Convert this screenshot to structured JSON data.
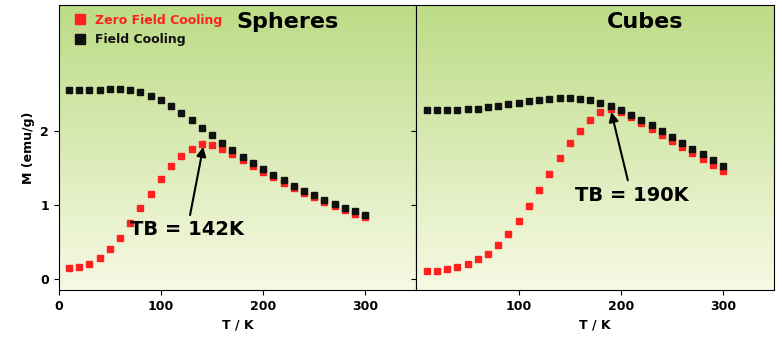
{
  "chart_data": [
    {
      "type": "scatter",
      "title": "Spheres",
      "x_label": "T / K",
      "y_label": "M (emu/g)",
      "x": [
        10,
        20,
        30,
        40,
        50,
        60,
        70,
        80,
        90,
        100,
        110,
        120,
        130,
        140,
        150,
        160,
        170,
        180,
        190,
        200,
        210,
        220,
        230,
        240,
        250,
        260,
        270,
        280,
        290,
        300
      ],
      "series": [
        {
          "name": "Zero Field Cooling",
          "color": "#ff2020",
          "marker": "square",
          "values": [
            0.15,
            0.16,
            0.2,
            0.28,
            0.4,
            0.55,
            0.75,
            0.95,
            1.15,
            1.35,
            1.52,
            1.66,
            1.76,
            1.82,
            1.81,
            1.76,
            1.68,
            1.6,
            1.52,
            1.44,
            1.37,
            1.3,
            1.23,
            1.16,
            1.1,
            1.04,
            0.98,
            0.93,
            0.88,
            0.83
          ]
        },
        {
          "name": "Field Cooling",
          "color": "#111111",
          "marker": "square",
          "values": [
            2.55,
            2.55,
            2.55,
            2.55,
            2.56,
            2.56,
            2.55,
            2.52,
            2.47,
            2.41,
            2.33,
            2.24,
            2.14,
            2.04,
            1.94,
            1.84,
            1.74,
            1.65,
            1.56,
            1.48,
            1.4,
            1.33,
            1.26,
            1.19,
            1.13,
            1.07,
            1.01,
            0.96,
            0.91,
            0.86
          ]
        }
      ],
      "xlim": [
        0,
        350
      ],
      "xticks": [
        0,
        100,
        200,
        300
      ],
      "ylim": [
        -0.15,
        3.7
      ],
      "yticks": [
        0,
        1,
        2
      ],
      "legend": "upper left",
      "annotations": [
        {
          "text": "TB = 142K",
          "x": 142,
          "y": 1.82
        }
      ]
    },
    {
      "type": "scatter",
      "title": "Cubes",
      "x_label": "T / K",
      "x": [
        10,
        20,
        30,
        40,
        50,
        60,
        70,
        80,
        90,
        100,
        110,
        120,
        130,
        140,
        150,
        160,
        170,
        180,
        190,
        200,
        210,
        220,
        230,
        240,
        250,
        260,
        270,
        280,
        290,
        300
      ],
      "series": [
        {
          "name": "Zero Field Cooling",
          "color": "#ff2020",
          "marker": "square",
          "values": [
            0.1,
            0.11,
            0.13,
            0.16,
            0.2,
            0.26,
            0.34,
            0.45,
            0.6,
            0.78,
            0.98,
            1.2,
            1.42,
            1.63,
            1.83,
            2.0,
            2.15,
            2.25,
            2.29,
            2.25,
            2.18,
            2.1,
            2.02,
            1.94,
            1.86,
            1.78,
            1.7,
            1.62,
            1.54,
            1.46
          ]
        },
        {
          "name": "Field Cooling",
          "color": "#111111",
          "marker": "square",
          "values": [
            2.28,
            2.28,
            2.28,
            2.28,
            2.29,
            2.3,
            2.32,
            2.34,
            2.36,
            2.38,
            2.4,
            2.42,
            2.43,
            2.44,
            2.44,
            2.43,
            2.41,
            2.37,
            2.33,
            2.28,
            2.22,
            2.15,
            2.08,
            2.0,
            1.92,
            1.84,
            1.76,
            1.68,
            1.6,
            1.52
          ]
        }
      ],
      "xlim": [
        0,
        350
      ],
      "xticks": [
        100,
        200,
        300
      ],
      "ylim": [
        -0.15,
        3.7
      ],
      "yticks": [
        0,
        1,
        2
      ],
      "tick_labels": "x",
      "annotations": [
        {
          "text": "TB = 190K",
          "x": 190,
          "y": 2.29
        }
      ]
    }
  ]
}
